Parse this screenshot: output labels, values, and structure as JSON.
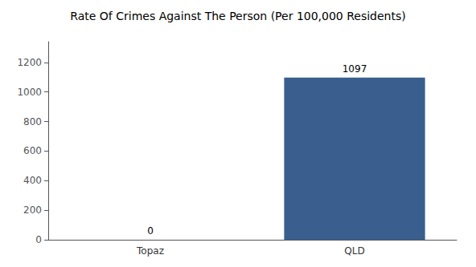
{
  "chart_data": {
    "type": "bar",
    "title": "Rate Of Crimes Against The Person (Per 100,000 Residents)",
    "categories": [
      "Topaz",
      "QLD"
    ],
    "values": [
      0,
      1097
    ],
    "color": "#3a5f8f",
    "ylim": [
      0,
      1340
    ],
    "yticks": [
      0,
      200,
      400,
      600,
      800,
      1000,
      1200
    ],
    "grid": false,
    "data_labels": true
  }
}
